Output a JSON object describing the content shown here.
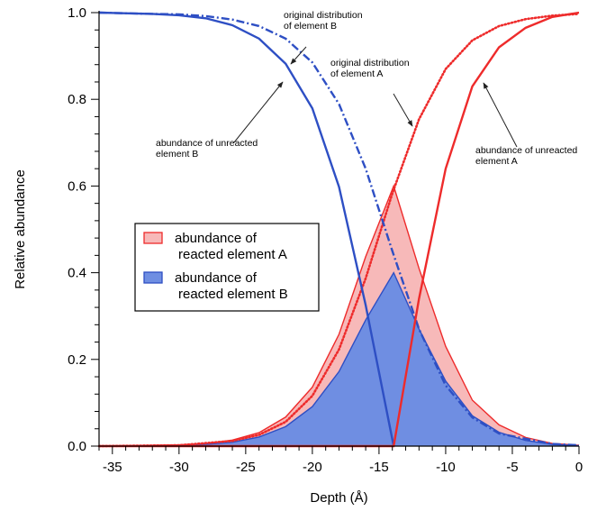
{
  "chart_data": {
    "type": "area",
    "xlabel": "Depth (Å)",
    "ylabel": "Relative abundance",
    "xlim": [
      -36,
      0
    ],
    "ylim": [
      0,
      1.0
    ],
    "x_ticks": [
      -35,
      -30,
      -25,
      -20,
      -15,
      -10,
      -5,
      0
    ],
    "y_ticks": [
      0.0,
      0.2,
      0.4,
      0.6,
      0.8,
      1.0
    ],
    "interface_depth": -13.9,
    "colors": {
      "element_a": "#ee2b2b",
      "element_b": "#2e4fc4",
      "reacted_a_fill": "#f7b9b9",
      "reacted_b_fill": "#6f8ee2"
    },
    "series": [
      {
        "key": "orig_a",
        "style": "dotted",
        "color": "#ee2b2b",
        "x": [
          -36,
          -30,
          -26,
          -24,
          -22,
          -20,
          -18,
          -16,
          -14,
          -12,
          -10,
          -8,
          -6,
          -4,
          -2,
          0
        ],
        "y": [
          0.0,
          0.002,
          0.012,
          0.026,
          0.056,
          0.116,
          0.223,
          0.387,
          0.583,
          0.754,
          0.87,
          0.936,
          0.969,
          0.985,
          0.993,
          0.997
        ]
      },
      {
        "key": "orig_b",
        "style": "dash-dot",
        "color": "#2e4fc4",
        "x": [
          -36,
          -32,
          -30,
          -28,
          -26,
          -24,
          -22,
          -20,
          -18,
          -16,
          -14,
          -12,
          -10,
          -8,
          -6,
          -2,
          0
        ],
        "y": [
          1.0,
          0.997,
          0.996,
          0.992,
          0.984,
          0.969,
          0.94,
          0.885,
          0.789,
          0.64,
          0.45,
          0.27,
          0.14,
          0.066,
          0.029,
          0.005,
          0.002
        ]
      },
      {
        "key": "unreacted_a",
        "style": "solid",
        "color": "#ee2b2b",
        "x": [
          -36,
          -13.9,
          -12,
          -10,
          -8,
          -6,
          -4,
          -2,
          0
        ],
        "y": [
          0.0,
          0.0,
          0.34,
          0.64,
          0.83,
          0.92,
          0.965,
          0.99,
          1.0
        ]
      },
      {
        "key": "unreacted_b",
        "style": "solid",
        "color": "#2e4fc4",
        "x": [
          -36,
          -32,
          -30,
          -28,
          -26,
          -24,
          -22,
          -20,
          -18,
          -16,
          -13.9
        ],
        "y": [
          1.0,
          0.997,
          0.994,
          0.987,
          0.971,
          0.94,
          0.882,
          0.779,
          0.598,
          0.325,
          0.0
        ]
      },
      {
        "key": "reacted_a",
        "style": "filled",
        "color": "#ee2b2b",
        "x": [
          -36,
          -30,
          -28,
          -26,
          -24,
          -22,
          -20,
          -18,
          -16,
          -13.9,
          -12,
          -10,
          -8,
          -6,
          -4,
          -2,
          0
        ],
        "y": [
          0.0,
          0.003,
          0.006,
          0.014,
          0.031,
          0.067,
          0.136,
          0.258,
          0.437,
          0.6,
          0.41,
          0.23,
          0.106,
          0.049,
          0.02,
          0.006,
          0.002
        ]
      },
      {
        "key": "reacted_b",
        "style": "filled",
        "color": "#2e4fc4",
        "x": [
          -36,
          -30,
          -28,
          -26,
          -24,
          -22,
          -20,
          -18,
          -16,
          -13.9,
          -12,
          -10,
          -8,
          -6,
          -4,
          -2,
          0
        ],
        "y": [
          0.0,
          0.002,
          0.004,
          0.009,
          0.021,
          0.045,
          0.091,
          0.172,
          0.291,
          0.4,
          0.27,
          0.15,
          0.07,
          0.032,
          0.013,
          0.004,
          0.001
        ]
      }
    ],
    "annotations": [
      {
        "key": "orig_b_note",
        "lines": [
          "original distribution",
          "of element B"
        ]
      },
      {
        "key": "orig_a_note",
        "lines": [
          "original distribution",
          "of element A"
        ]
      },
      {
        "key": "unreacted_b_note",
        "lines": [
          "abundance of unreacted",
          "element B"
        ]
      },
      {
        "key": "unreacted_a_note",
        "lines": [
          "abundance of unreacted",
          "element A"
        ]
      }
    ],
    "legend": {
      "entries": [
        {
          "key": "reacted_a",
          "lines": [
            "abundance of",
            "reacted element A"
          ]
        },
        {
          "key": "reacted_b",
          "lines": [
            "abundance of",
            "reacted element B"
          ]
        }
      ]
    }
  }
}
